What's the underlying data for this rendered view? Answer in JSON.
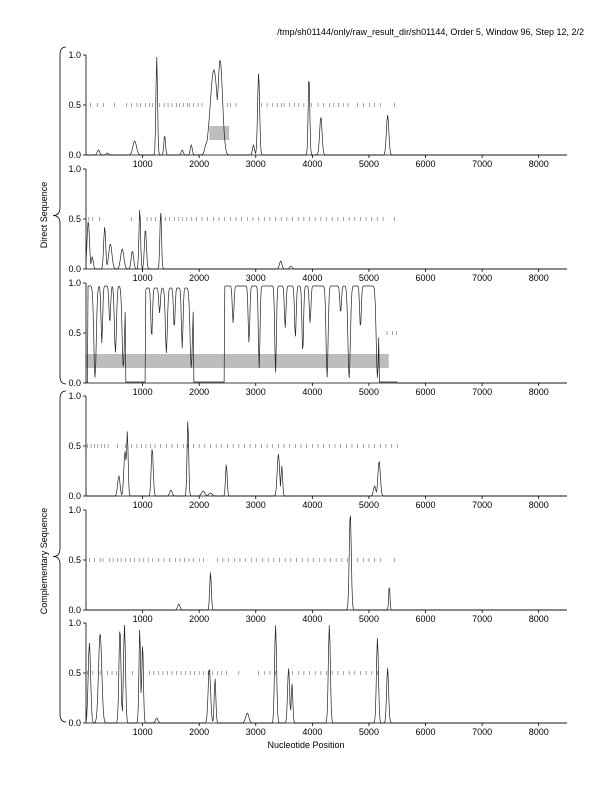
{
  "header": "/tmp/sh01144/only/raw_result_dir/sh01144, Order 5, Window 96, Step 12, 2/2",
  "xlabel": "Nucleotide Position",
  "group_labels": {
    "direct": "Direct Sequence",
    "complementary": "Complementary Sequence"
  },
  "chart_data": [
    {
      "type": "line",
      "panel": "direct-frame-1",
      "xlim": [
        0,
        8500
      ],
      "ylim": [
        0,
        1
      ],
      "x_ticks": [
        1000,
        2000,
        3000,
        4000,
        5000,
        6000,
        7000,
        8000
      ],
      "y_ticks": [
        "0.0",
        "0.5",
        "1.0"
      ],
      "highlight_boxes": [
        {
          "x0": 2180,
          "x1": 2530,
          "y0": 0.15,
          "y1": 0.29
        }
      ],
      "tick_marks": [
        80,
        200,
        310,
        500,
        720,
        800,
        900,
        960,
        1050,
        1120,
        1180,
        1300,
        1380,
        1450,
        1520,
        1600,
        1650,
        1720,
        1790,
        1830,
        1900,
        1980,
        2050,
        2500,
        2550,
        2650,
        3100,
        3200,
        3300,
        3380,
        3450,
        3500,
        3600,
        3680,
        3750,
        3850,
        3980,
        4100,
        4200,
        4300,
        4380,
        4460,
        4550,
        4630,
        4800,
        4900,
        5010,
        5100,
        5200,
        5450
      ],
      "peaks": [
        [
          220,
          0.05,
          30
        ],
        [
          380,
          0.02,
          30
        ],
        [
          860,
          0.14,
          45
        ],
        [
          1250,
          0.98,
          20
        ],
        [
          1390,
          0.2,
          20
        ],
        [
          1700,
          0.05,
          25
        ],
        [
          1860,
          0.1,
          25
        ],
        [
          2130,
          0.12,
          40
        ],
        [
          2260,
          0.85,
          90
        ],
        [
          2370,
          0.95,
          60
        ],
        [
          2960,
          0.1,
          25
        ],
        [
          3050,
          0.82,
          25
        ],
        [
          3940,
          0.8,
          20
        ],
        [
          4150,
          0.38,
          30
        ],
        [
          5330,
          0.4,
          30
        ]
      ]
    },
    {
      "type": "line",
      "panel": "direct-frame-2",
      "xlim": [
        0,
        8500
      ],
      "ylim": [
        0,
        1
      ],
      "x_ticks": [
        1000,
        2000,
        3000,
        4000,
        5000,
        6000,
        7000,
        8000
      ],
      "y_ticks": [
        "0.0",
        "0.5",
        "1.0"
      ],
      "highlight_boxes": [],
      "tick_marks": [
        50,
        120,
        240,
        800,
        960,
        1080,
        1150,
        1230,
        1330,
        1400,
        1480,
        1560,
        1640,
        1700,
        1780,
        1860,
        1950,
        2050,
        2150,
        2250,
        2350,
        2450,
        2550,
        2650,
        2750,
        2850,
        2950,
        3050,
        3150,
        3250,
        3350,
        3450,
        3550,
        3650,
        3750,
        3850,
        3950,
        4050,
        4150,
        4250,
        4350,
        4450,
        4550,
        4650,
        4750,
        4850,
        4950,
        5050,
        5150,
        5250,
        5450
      ],
      "peaks": [
        [
          40,
          0.48,
          30
        ],
        [
          110,
          0.12,
          25
        ],
        [
          330,
          0.42,
          25
        ],
        [
          430,
          0.25,
          40
        ],
        [
          640,
          0.2,
          40
        ],
        [
          820,
          0.18,
          30
        ],
        [
          950,
          0.6,
          20
        ],
        [
          1050,
          0.4,
          25
        ],
        [
          1320,
          0.58,
          20
        ],
        [
          3440,
          0.08,
          30
        ],
        [
          3620,
          0.03,
          30
        ]
      ]
    },
    {
      "type": "line",
      "panel": "direct-frame-3",
      "xlim": [
        0,
        8500
      ],
      "ylim": [
        0,
        1
      ],
      "x_ticks": [
        1000,
        2000,
        3000,
        4000,
        5000,
        6000,
        7000,
        8000
      ],
      "y_ticks": [
        "0.0",
        "0.5",
        "1.0"
      ],
      "highlight_boxes": [
        {
          "x0": 0,
          "x1": 5350,
          "y0": 0.15,
          "y1": 0.29
        }
      ],
      "tick_marks": [
        5320,
        5420,
        5490
      ],
      "baseline_high": [
        [
          30,
          700,
          0.97
        ],
        [
          1050,
          1900,
          0.95
        ],
        [
          2450,
          5180,
          0.97
        ]
      ],
      "dips": [
        [
          160,
          0.05,
          30
        ],
        [
          280,
          0.4,
          20
        ],
        [
          420,
          0.6,
          20
        ],
        [
          520,
          0.3,
          25
        ],
        [
          660,
          0.15,
          30
        ],
        [
          800,
          0.55,
          20
        ],
        [
          900,
          0.1,
          30
        ],
        [
          1020,
          0.3,
          20
        ],
        [
          1160,
          0.45,
          20
        ],
        [
          1300,
          0.7,
          20
        ],
        [
          1420,
          0.3,
          25
        ],
        [
          1560,
          0.55,
          20
        ],
        [
          1700,
          0.35,
          20
        ],
        [
          1860,
          0.15,
          30
        ],
        [
          2050,
          0.05,
          80
        ],
        [
          2300,
          0.02,
          60
        ],
        [
          2600,
          0.6,
          20
        ],
        [
          2880,
          0.4,
          20
        ],
        [
          3060,
          0.15,
          20
        ],
        [
          3350,
          0.1,
          20
        ],
        [
          3520,
          0.55,
          20
        ],
        [
          3700,
          0.45,
          20
        ],
        [
          3830,
          0.3,
          20
        ],
        [
          3960,
          0.6,
          20
        ],
        [
          4260,
          0.05,
          25
        ],
        [
          4500,
          0.7,
          20
        ],
        [
          4650,
          0.05,
          30
        ],
        [
          4850,
          0.55,
          20
        ],
        [
          5150,
          0.05,
          30
        ]
      ]
    },
    {
      "type": "line",
      "panel": "complementary-frame-1",
      "xlim": [
        0,
        8500
      ],
      "ylim": [
        0,
        1
      ],
      "x_ticks": [
        1000,
        2000,
        3000,
        4000,
        5000,
        6000,
        7000,
        8000
      ],
      "y_ticks": [
        "0.0",
        "0.5",
        "1.0"
      ],
      "highlight_boxes": [],
      "tick_marks": [
        30,
        90,
        150,
        210,
        270,
        330,
        390,
        560,
        700,
        800,
        900,
        980,
        1060,
        1140,
        1220,
        1320,
        1420,
        1520,
        1620,
        1720,
        1800,
        1900,
        2000,
        2100,
        2200,
        2300,
        2400,
        2500,
        2600,
        2700,
        2800,
        2900,
        3000,
        3100,
        3200,
        3300,
        3400,
        3500,
        3600,
        3700,
        3800,
        3900,
        4000,
        4100,
        4200,
        4300,
        4400,
        4500,
        4600,
        4700,
        4800,
        4900,
        5000,
        5100,
        5200,
        5300,
        5400,
        5500
      ],
      "peaks": [
        [
          580,
          0.2,
          30
        ],
        [
          690,
          0.45,
          30
        ],
        [
          730,
          0.65,
          20
        ],
        [
          1170,
          0.48,
          25
        ],
        [
          1500,
          0.06,
          30
        ],
        [
          1800,
          0.76,
          20
        ],
        [
          2070,
          0.05,
          40
        ],
        [
          2200,
          0.03,
          40
        ],
        [
          2480,
          0.32,
          20
        ],
        [
          3400,
          0.42,
          30
        ],
        [
          3460,
          0.3,
          20
        ],
        [
          5100,
          0.1,
          30
        ],
        [
          5180,
          0.35,
          30
        ]
      ]
    },
    {
      "type": "line",
      "panel": "complementary-frame-2",
      "xlim": [
        0,
        8500
      ],
      "ylim": [
        0,
        1
      ],
      "x_ticks": [
        1000,
        2000,
        3000,
        4000,
        5000,
        6000,
        7000,
        8000
      ],
      "y_ticks": [
        "0.0",
        "0.5",
        "1.0"
      ],
      "highlight_boxes": [],
      "tick_marks": [
        60,
        150,
        250,
        300,
        420,
        480,
        560,
        620,
        700,
        780,
        860,
        940,
        1020,
        1100,
        1180,
        1280,
        1380,
        1480,
        1580,
        1660,
        1740,
        1820,
        1900,
        2000,
        2080,
        2320,
        2420,
        2520,
        2620,
        2720,
        2820,
        2920,
        3020,
        3120,
        3220,
        3320,
        3420,
        3520,
        3620,
        3720,
        3820,
        3920,
        4020,
        4120,
        4220,
        4320,
        4420,
        4520,
        4620,
        4800,
        4900,
        5000,
        5100,
        5200,
        5450
      ],
      "peaks": [
        [
          1640,
          0.06,
          30
        ],
        [
          2200,
          0.38,
          20
        ],
        [
          4670,
          0.98,
          25
        ],
        [
          5360,
          0.25,
          15
        ]
      ]
    },
    {
      "type": "line",
      "panel": "complementary-frame-3",
      "xlim": [
        0,
        8500
      ],
      "ylim": [
        0,
        1
      ],
      "x_ticks": [
        1000,
        2000,
        3000,
        4000,
        5000,
        6000,
        7000,
        8000
      ],
      "y_ticks": [
        "0.0",
        "0.5",
        "1.0"
      ],
      "highlight_boxes": [],
      "tick_marks": [
        30,
        120,
        250,
        380,
        460,
        540,
        820,
        1120,
        1200,
        1280,
        1360,
        1440,
        1520,
        1600,
        1680,
        1760,
        1840,
        1920,
        2000,
        2080,
        2160,
        2240,
        2320,
        2400,
        2480,
        2700,
        3050,
        3150,
        3250,
        3350,
        3650,
        3750,
        3850,
        3950,
        4050,
        4150,
        4250,
        4350,
        4450,
        4550,
        4650,
        4750,
        4850,
        4950,
        5050,
        5150
      ],
      "peaks": [
        [
          60,
          0.8,
          30
        ],
        [
          250,
          0.9,
          40
        ],
        [
          600,
          0.95,
          25
        ],
        [
          680,
          0.98,
          25
        ],
        [
          950,
          0.95,
          20
        ],
        [
          1000,
          0.8,
          20
        ],
        [
          1250,
          0.05,
          30
        ],
        [
          2180,
          0.55,
          30
        ],
        [
          2280,
          0.45,
          20
        ],
        [
          2850,
          0.1,
          40
        ],
        [
          3350,
          0.98,
          25
        ],
        [
          3580,
          0.55,
          25
        ],
        [
          3640,
          0.4,
          20
        ],
        [
          4300,
          0.98,
          25
        ],
        [
          5150,
          0.85,
          25
        ],
        [
          5330,
          0.55,
          25
        ]
      ]
    }
  ]
}
